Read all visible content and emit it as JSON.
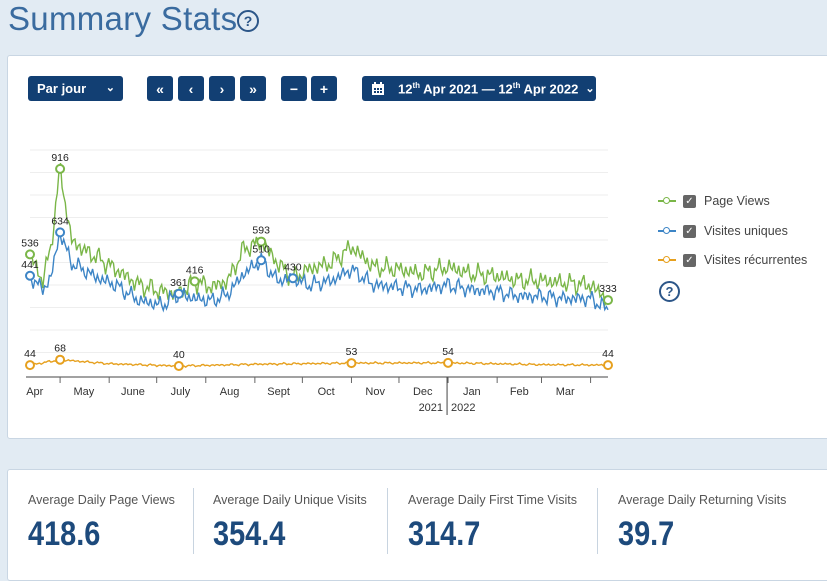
{
  "page": {
    "title": "Summary Stats",
    "help_icon": "question-circle-icon"
  },
  "toolbar": {
    "period_label": "Par jour",
    "first_label": "«",
    "prev_label": "‹",
    "next_label": "›",
    "last_label": "»",
    "zoom_out_label": "−",
    "zoom_in_label": "+",
    "date_range": {
      "start_day": "12",
      "start_sfx": "th",
      "start_rest": " Apr 2021 — ",
      "end_day": "12",
      "end_sfx": "th",
      "end_rest": " Apr 2022"
    }
  },
  "legend": {
    "items": [
      {
        "label": "Page Views",
        "color": "#7ab648",
        "checked": true
      },
      {
        "label": "Visites uniques",
        "color": "#3d85c6",
        "checked": true
      },
      {
        "label": "Visites récurrentes",
        "color": "#e6a01e",
        "checked": true
      }
    ]
  },
  "chart_data": {
    "type": "line",
    "x_start": "2021-04-12",
    "x_end": "2022-04-12",
    "x_ticks": [
      "Apr",
      "May",
      "June",
      "July",
      "Aug",
      "Sept",
      "Oct",
      "Nov",
      "Dec",
      "Jan",
      "Feb",
      "Mar"
    ],
    "x_year_labels": [
      "2021",
      "2022"
    ],
    "ylim": [
      0,
      1000
    ],
    "series": [
      {
        "name": "Page Views",
        "color": "#7ab648",
        "points": [
          [
            "2021-04-12",
            536
          ],
          [
            "2021-04-20",
            420
          ],
          [
            "2021-04-25",
            560
          ],
          [
            "2021-05-01",
            916
          ],
          [
            "2021-05-08",
            600
          ],
          [
            "2021-05-15",
            560
          ],
          [
            "2021-05-25",
            520
          ],
          [
            "2021-06-05",
            470
          ],
          [
            "2021-06-20",
            400
          ],
          [
            "2021-07-05",
            370
          ],
          [
            "2021-07-15",
            361
          ],
          [
            "2021-07-25",
            416
          ],
          [
            "2021-08-05",
            390
          ],
          [
            "2021-08-15",
            420
          ],
          [
            "2021-08-25",
            560
          ],
          [
            "2021-09-05",
            593
          ],
          [
            "2021-09-15",
            500
          ],
          [
            "2021-09-25",
            430
          ],
          [
            "2021-10-05",
            470
          ],
          [
            "2021-10-20",
            500
          ],
          [
            "2021-11-01",
            570
          ],
          [
            "2021-11-15",
            480
          ],
          [
            "2021-12-01",
            470
          ],
          [
            "2021-12-15",
            450
          ],
          [
            "2022-01-01",
            480
          ],
          [
            "2022-01-15",
            450
          ],
          [
            "2022-02-01",
            440
          ],
          [
            "2022-02-15",
            420
          ],
          [
            "2022-03-01",
            420
          ],
          [
            "2022-03-15",
            410
          ],
          [
            "2022-04-01",
            400
          ],
          [
            "2022-04-12",
            333
          ]
        ]
      },
      {
        "name": "Visites uniques",
        "color": "#3d85c6",
        "points": [
          [
            "2021-04-12",
            441
          ],
          [
            "2021-04-20",
            380
          ],
          [
            "2021-04-25",
            430
          ],
          [
            "2021-05-01",
            634
          ],
          [
            "2021-05-08",
            500
          ],
          [
            "2021-05-15",
            470
          ],
          [
            "2021-05-25",
            430
          ],
          [
            "2021-06-05",
            400
          ],
          [
            "2021-06-20",
            330
          ],
          [
            "2021-07-05",
            310
          ],
          [
            "2021-07-15",
            361
          ],
          [
            "2021-07-25",
            340
          ],
          [
            "2021-08-05",
            330
          ],
          [
            "2021-08-15",
            360
          ],
          [
            "2021-08-25",
            450
          ],
          [
            "2021-09-05",
            510
          ],
          [
            "2021-09-15",
            420
          ],
          [
            "2021-09-25",
            430
          ],
          [
            "2021-10-05",
            400
          ],
          [
            "2021-10-20",
            420
          ],
          [
            "2021-11-01",
            470
          ],
          [
            "2021-11-15",
            400
          ],
          [
            "2021-12-01",
            390
          ],
          [
            "2021-12-15",
            380
          ],
          [
            "2022-01-01",
            400
          ],
          [
            "2022-01-15",
            380
          ],
          [
            "2022-02-01",
            370
          ],
          [
            "2022-02-15",
            350
          ],
          [
            "2022-03-01",
            350
          ],
          [
            "2022-03-15",
            340
          ],
          [
            "2022-04-01",
            340
          ],
          [
            "2022-04-12",
            290
          ]
        ]
      },
      {
        "name": "Visites récurrentes",
        "color": "#e6a01e",
        "points": [
          [
            "2021-04-12",
            44
          ],
          [
            "2021-05-01",
            68
          ],
          [
            "2021-06-01",
            50
          ],
          [
            "2021-07-15",
            40
          ],
          [
            "2021-09-01",
            48
          ],
          [
            "2021-11-01",
            53
          ],
          [
            "2022-01-01",
            54
          ],
          [
            "2022-03-01",
            46
          ],
          [
            "2022-04-12",
            44
          ]
        ]
      }
    ],
    "point_labels": [
      {
        "series": 0,
        "date": "2021-04-12",
        "value": 536
      },
      {
        "series": 1,
        "date": "2021-04-12",
        "value": 441
      },
      {
        "series": 0,
        "date": "2021-05-01",
        "value": 916
      },
      {
        "series": 1,
        "date": "2021-05-01",
        "value": 634
      },
      {
        "series": 1,
        "date": "2021-07-15",
        "value": 361
      },
      {
        "series": 0,
        "date": "2021-07-25",
        "value": 416
      },
      {
        "series": 0,
        "date": "2021-09-05",
        "value": 593
      },
      {
        "series": 1,
        "date": "2021-09-05",
        "value": 510
      },
      {
        "series": 1,
        "date": "2021-09-25",
        "value": 430
      },
      {
        "series": 0,
        "date": "2022-04-12",
        "value": 333
      },
      {
        "series": 2,
        "date": "2021-04-12",
        "value": 44
      },
      {
        "series": 2,
        "date": "2021-05-01",
        "value": 68
      },
      {
        "series": 2,
        "date": "2021-07-15",
        "value": 40
      },
      {
        "series": 2,
        "date": "2021-11-01",
        "value": 53
      },
      {
        "series": 2,
        "date": "2022-01-01",
        "value": 54
      },
      {
        "series": 2,
        "date": "2022-04-12",
        "value": 44
      }
    ],
    "grid": true
  },
  "stats": [
    {
      "label": "Average Daily Page Views",
      "value": "418.6"
    },
    {
      "label": "Average Daily Unique Visits",
      "value": "354.4"
    },
    {
      "label": "Average Daily First Time Visits",
      "value": "314.7"
    },
    {
      "label": "Average Daily Returning Visits",
      "value": "39.7"
    }
  ]
}
